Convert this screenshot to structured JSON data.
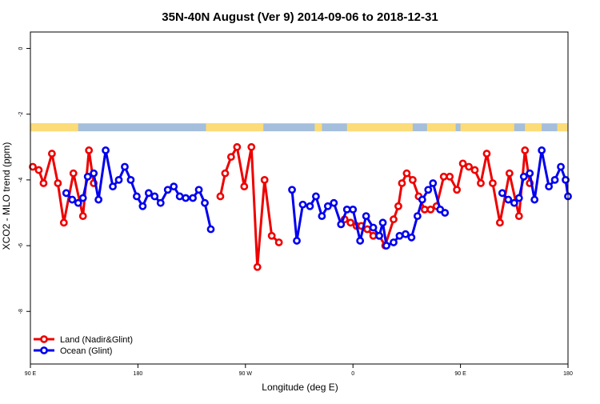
{
  "chart_data": {
    "type": "line",
    "title": "35N-40N August (Ver 9)   2014-09-06 to 2018-12-31",
    "xlabel": "Longitude (deg E)",
    "ylabel": "XCO2 - MLO trend (ppm)",
    "xlim": [
      90,
      540
    ],
    "ylim": [
      -9.6,
      0.5
    ],
    "x_ticks": [
      {
        "value": 90,
        "label": "90 E"
      },
      {
        "value": 180,
        "label": "180"
      },
      {
        "value": 270,
        "label": "90 W"
      },
      {
        "value": 360,
        "label": "0"
      },
      {
        "value": 450,
        "label": "90 E"
      },
      {
        "value": 540,
        "label": "180"
      }
    ],
    "y_ticks": [
      {
        "value": 0,
        "label": "0"
      },
      {
        "value": -2,
        "label": "-2"
      },
      {
        "value": -4,
        "label": "-4"
      },
      {
        "value": -6,
        "label": "-6"
      },
      {
        "value": -8,
        "label": "-8"
      }
    ],
    "legend_position": "bottom-left",
    "land_ocean_strip": {
      "y_top": -2.28,
      "y_bottom": -2.52,
      "ocean_color": "#a4bedc",
      "land_color": "#fcdc78",
      "land_x_ranges": [
        [
          90,
          130
        ],
        [
          237,
          285
        ],
        [
          328,
          334
        ],
        [
          355,
          410
        ],
        [
          422,
          446
        ],
        [
          450,
          495
        ],
        [
          504,
          518
        ],
        [
          531,
          540
        ]
      ]
    },
    "series": [
      {
        "name": "Land (Nadir&Glint)",
        "color": "#ee0000",
        "segments": [
          [
            [
              92,
              -3.6
            ],
            [
              97,
              -3.7
            ],
            [
              101,
              -4.1
            ],
            [
              108,
              -3.2
            ],
            [
              113,
              -4.1
            ],
            [
              118,
              -5.3
            ],
            [
              126,
              -3.8
            ],
            [
              134,
              -5.1
            ],
            [
              139,
              -3.1
            ],
            [
              143,
              -4.1
            ]
          ],
          [
            [
              249,
              -4.5
            ],
            [
              253,
              -3.8
            ],
            [
              258,
              -3.3
            ],
            [
              263,
              -3.0
            ],
            [
              269,
              -4.2
            ],
            [
              275,
              -3.0
            ],
            [
              280,
              -6.65
            ],
            [
              286,
              -4.0
            ],
            [
              292,
              -5.7
            ],
            [
              298,
              -5.9
            ]
          ],
          [
            [
              353,
              -5.2
            ],
            [
              358,
              -5.3
            ],
            [
              363,
              -5.4
            ],
            [
              367,
              -5.4
            ],
            [
              372,
              -5.5
            ],
            [
              377,
              -5.7
            ],
            [
              382,
              -5.7
            ],
            [
              387,
              -6.0
            ],
            [
              394,
              -5.2
            ],
            [
              398,
              -4.8
            ],
            [
              401,
              -4.1
            ],
            [
              405,
              -3.8
            ],
            [
              410,
              -4.0
            ],
            [
              415,
              -4.5
            ],
            [
              420,
              -4.9
            ],
            [
              425,
              -4.9
            ],
            [
              430,
              -4.8
            ],
            [
              436,
              -3.9
            ],
            [
              441,
              -3.9
            ],
            [
              447,
              -4.3
            ],
            [
              452,
              -3.5
            ],
            [
              457,
              -3.6
            ],
            [
              462,
              -3.7
            ],
            [
              467,
              -4.1
            ],
            [
              472,
              -3.2
            ],
            [
              477,
              -4.1
            ],
            [
              483,
              -5.3
            ],
            [
              491,
              -3.8
            ],
            [
              499,
              -5.1
            ],
            [
              504,
              -3.1
            ],
            [
              508,
              -4.1
            ]
          ]
        ]
      },
      {
        "name": "Ocean (Glint)",
        "color": "#0000ee",
        "segments": [
          [
            [
              120,
              -4.4
            ],
            [
              125,
              -4.6
            ],
            [
              130,
              -4.7
            ],
            [
              134,
              -4.55
            ],
            [
              138,
              -3.9
            ],
            [
              143,
              -3.8
            ],
            [
              147,
              -4.6
            ],
            [
              153,
              -3.1
            ],
            [
              159,
              -4.2
            ],
            [
              164,
              -4.0
            ],
            [
              169,
              -3.6
            ],
            [
              174,
              -4.0
            ],
            [
              179,
              -4.5
            ],
            [
              184,
              -4.8
            ],
            [
              189,
              -4.4
            ],
            [
              194,
              -4.5
            ],
            [
              199,
              -4.7
            ],
            [
              205,
              -4.3
            ],
            [
              210,
              -4.2
            ],
            [
              215,
              -4.5
            ],
            [
              220,
              -4.55
            ],
            [
              226,
              -4.55
            ],
            [
              231,
              -4.3
            ],
            [
              236,
              -4.7
            ],
            [
              241,
              -5.5
            ]
          ],
          [
            [
              309,
              -4.3
            ],
            [
              313,
              -5.85
            ],
            [
              318,
              -4.75
            ],
            [
              324,
              -4.8
            ],
            [
              329,
              -4.5
            ],
            [
              334,
              -5.1
            ],
            [
              339,
              -4.8
            ],
            [
              344,
              -4.7
            ],
            [
              350,
              -5.35
            ],
            [
              355,
              -4.9
            ],
            [
              360,
              -4.9
            ],
            [
              366,
              -5.85
            ],
            [
              371,
              -5.1
            ],
            [
              377,
              -5.45
            ],
            [
              382,
              -5.7
            ],
            [
              385,
              -5.3
            ],
            [
              388,
              -6.0
            ],
            [
              394,
              -5.9
            ],
            [
              399,
              -5.7
            ],
            [
              404,
              -5.65
            ],
            [
              409,
              -5.75
            ],
            [
              414,
              -5.1
            ],
            [
              418,
              -4.6
            ],
            [
              423,
              -4.3
            ],
            [
              427,
              -4.1
            ],
            [
              433,
              -4.9
            ],
            [
              437,
              -5.0
            ]
          ],
          [
            [
              485,
              -4.4
            ],
            [
              490,
              -4.6
            ],
            [
              495,
              -4.7
            ],
            [
              499,
              -4.55
            ],
            [
              503,
              -3.9
            ],
            [
              508,
              -3.8
            ],
            [
              512,
              -4.6
            ],
            [
              518,
              -3.1
            ],
            [
              524,
              -4.2
            ],
            [
              529,
              -4.0
            ],
            [
              534,
              -3.6
            ],
            [
              538,
              -4.0
            ],
            [
              540,
              -4.5
            ]
          ]
        ]
      }
    ]
  }
}
